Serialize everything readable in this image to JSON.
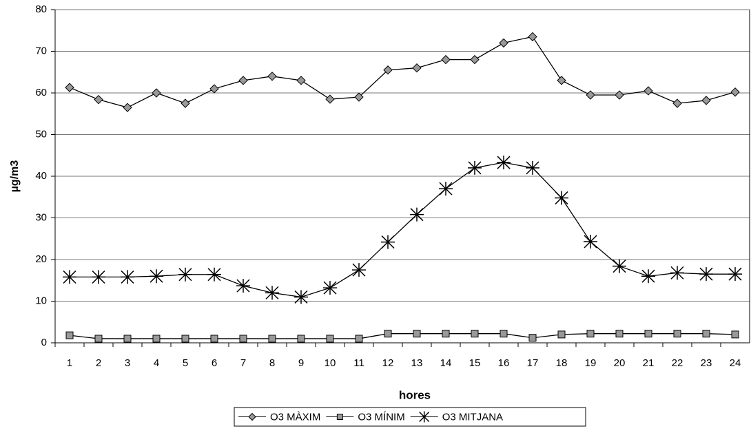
{
  "chart_data": {
    "type": "line",
    "x_label": "hores",
    "y_label": "µg/m3",
    "categories": [
      "1",
      "2",
      "3",
      "4",
      "5",
      "6",
      "7",
      "8",
      "9",
      "10",
      "11",
      "12",
      "13",
      "14",
      "15",
      "16",
      "17",
      "18",
      "19",
      "20",
      "21",
      "22",
      "23",
      "24"
    ],
    "series": [
      {
        "name": "O3 MÀXIM",
        "color": "#000000",
        "marker": "diamond",
        "values": [
          61.3,
          58.4,
          56.5,
          60,
          57.5,
          61,
          63,
          64,
          63,
          58.5,
          59,
          65.5,
          66,
          68,
          68,
          72,
          73.5,
          63,
          59.5,
          59.5,
          60.5,
          57.5,
          58.2,
          60.2
        ]
      },
      {
        "name": "O3 MÍNIM",
        "color": "#000000",
        "marker": "square",
        "values": [
          1.8,
          1,
          1,
          1,
          1,
          1,
          1,
          1,
          1,
          1,
          1,
          2.2,
          2.2,
          2.2,
          2.2,
          2.2,
          1.2,
          2,
          2.2,
          2.2,
          2.2,
          2.2,
          2.2,
          2
        ]
      },
      {
        "name": "O3 MITJANA",
        "color": "#000000",
        "marker": "asterisk",
        "values": [
          15.8,
          15.8,
          15.8,
          16,
          16.4,
          16.4,
          13.7,
          12,
          11,
          13.2,
          17.5,
          24.2,
          30.8,
          37,
          42,
          43.3,
          42,
          34.8,
          24.3,
          18.4,
          16,
          16.8,
          16.5,
          16.5
        ]
      }
    ],
    "ylim": [
      0,
      80
    ],
    "yticks": [
      0,
      10,
      20,
      30,
      40,
      50,
      60,
      70,
      80
    ],
    "grid": true,
    "legend": "bottom"
  }
}
